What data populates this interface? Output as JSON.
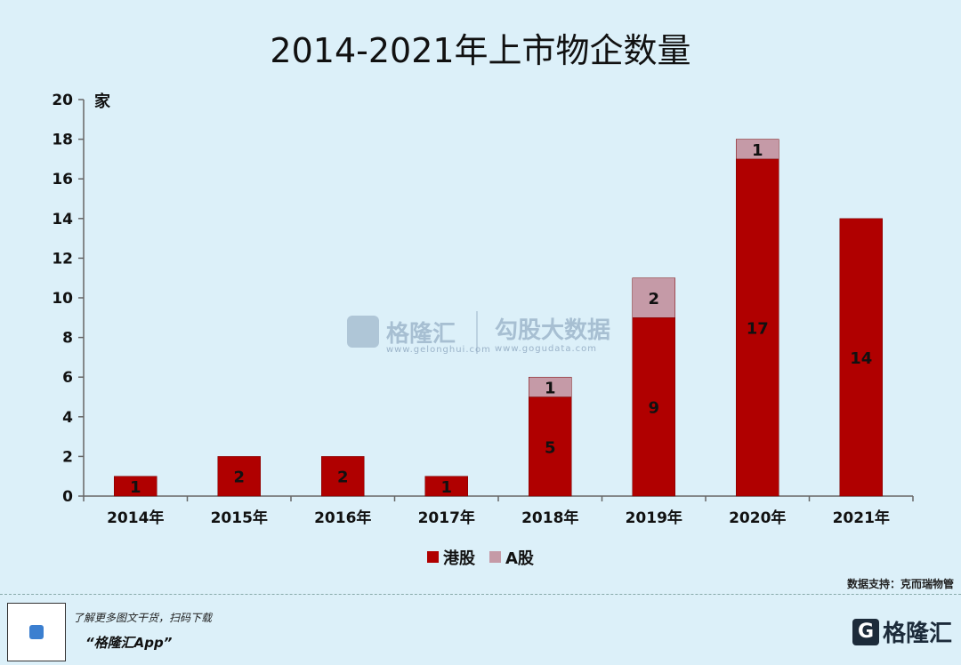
{
  "chart_data": {
    "type": "bar",
    "stacked": true,
    "title": "2014-2021年上市物企数量",
    "ylabel": "家",
    "ylim": [
      0,
      20
    ],
    "yticks": [
      0,
      2,
      4,
      6,
      8,
      10,
      12,
      14,
      16,
      18,
      20
    ],
    "categories": [
      "2014年",
      "2015年",
      "2016年",
      "2017年",
      "2018年",
      "2019年",
      "2020年",
      "2021年"
    ],
    "series": [
      {
        "name": "港股",
        "color": "#b00000",
        "values": [
          1,
          2,
          2,
          1,
          5,
          9,
          17,
          14
        ]
      },
      {
        "name": "A股",
        "color": "#c59aa7",
        "values": [
          0,
          0,
          0,
          0,
          1,
          2,
          1,
          0
        ]
      }
    ],
    "legend": "bottom",
    "grid": false
  },
  "source_text": "数据支持：克而瑞物管",
  "watermark": {
    "left": "格隆汇",
    "left_url": "www.gelonghui.com",
    "right": "勾股大数据",
    "right_url": "www.gogudata.com"
  },
  "footer": {
    "line1": "了解更多图文干货，扫码下载",
    "line2": "“格隆汇App”",
    "logo_mark": "G",
    "logo_text": "格隆汇"
  }
}
